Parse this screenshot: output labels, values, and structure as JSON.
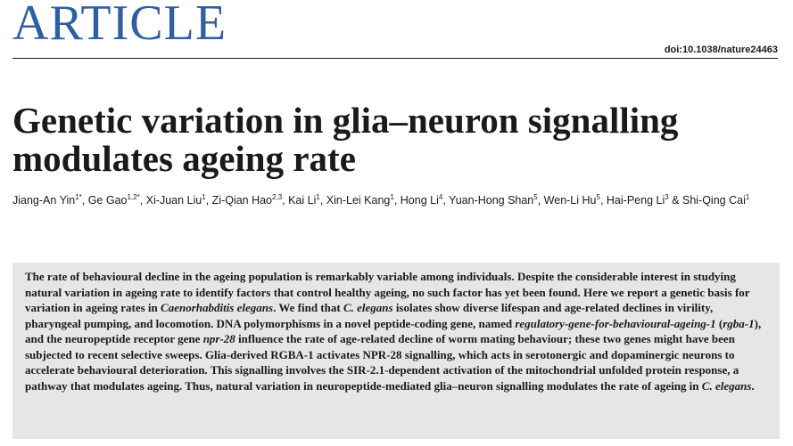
{
  "header": {
    "section_label": "ARTICLE",
    "doi": "doi:10.1038/nature24463"
  },
  "article": {
    "title": "Genetic variation in glia–neuron signalling modulates ageing rate",
    "authors": [
      {
        "name": "Jiang-An Yin",
        "affil": "1*"
      },
      {
        "name": "Ge Gao",
        "affil": "1,2*"
      },
      {
        "name": "Xi-Juan Liu",
        "affil": "1"
      },
      {
        "name": "Zi-Qian Hao",
        "affil": "2,3"
      },
      {
        "name": "Kai Li",
        "affil": "1"
      },
      {
        "name": "Xin-Lei Kang",
        "affil": "1"
      },
      {
        "name": "Hong Li",
        "affil": "4"
      },
      {
        "name": "Yuan-Hong Shan",
        "affil": "5"
      },
      {
        "name": "Wen-Li Hu",
        "affil": "5"
      },
      {
        "name": "Hai-Peng Li",
        "affil": "3"
      },
      {
        "name": "Shi-Qing Cai",
        "affil": "1"
      }
    ],
    "author_separator": ", ",
    "author_final_separator": " & ",
    "abstract": [
      {
        "t": "The rate of behavioural decline in the ageing population is remarkably variable among individuals. Despite the considerable interest in studying natural variation in ageing rate to identify factors that control healthy ageing, no such factor has yet been found. Here we report a genetic basis for variation in ageing rates in "
      },
      {
        "t": "Caenorhabditis elegans",
        "i": true
      },
      {
        "t": ". We find that "
      },
      {
        "t": "C. elegans",
        "i": true
      },
      {
        "t": " isolates show diverse lifespan and age-related declines in virility, pharyngeal pumping, and locomotion. DNA polymorphisms in a novel peptide-coding gene, named "
      },
      {
        "t": "regulatory-gene-for-behavioural-ageing-1",
        "i": true
      },
      {
        "t": " ("
      },
      {
        "t": "rgba-1",
        "i": true
      },
      {
        "t": "), and the neuropeptide receptor gene "
      },
      {
        "t": "npr-28",
        "i": true
      },
      {
        "t": " influence the rate of age-related decline of worm mating behaviour; these two genes might have been subjected to recent selective sweeps. Glia-derived RGBA-1 activates NPR-28 signalling, which acts in serotonergic and dopaminergic neurons to accelerate behavioural deterioration. This signalling involves the SIR-2.1-dependent activation of the mitochondrial unfolded protein response, a pathway that modulates ageing. Thus, natural variation in neuropeptide-mediated glia–neuron signalling modulates the rate of ageing in "
      },
      {
        "t": "C. elegans",
        "i": true
      },
      {
        "t": "."
      }
    ]
  }
}
